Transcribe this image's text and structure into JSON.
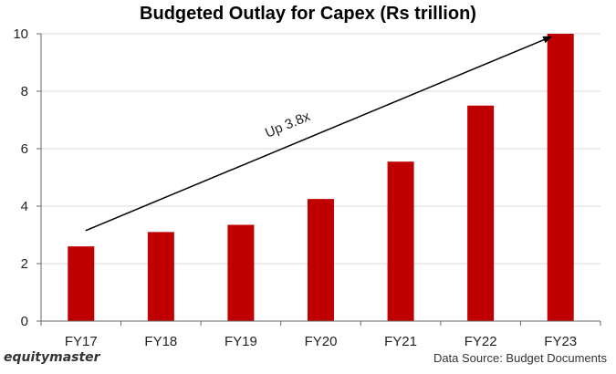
{
  "colors": {
    "bar": "#c00000",
    "arrow": "#000000"
  },
  "footer": {
    "brand": "equitymaster",
    "source": "Data Source: Budget Documents"
  },
  "chart_data": {
    "type": "bar",
    "title": "Budgeted Outlay for Capex (Rs trillion)",
    "xlabel": "",
    "ylabel": "",
    "categories": [
      "FY17",
      "FY18",
      "FY19",
      "FY20",
      "FY21",
      "FY22",
      "FY23"
    ],
    "values": [
      2.6,
      3.1,
      3.35,
      4.25,
      5.55,
      7.5,
      10.0
    ],
    "ylim": [
      0,
      10
    ],
    "yticks": [
      0,
      2,
      4,
      6,
      8,
      10
    ],
    "grid": true,
    "legend": "none",
    "annotation": {
      "text": "Up 3.8x",
      "from_category": "FY17",
      "from_value": 3.15,
      "to_category": "FY23",
      "to_value": 9.9
    }
  }
}
